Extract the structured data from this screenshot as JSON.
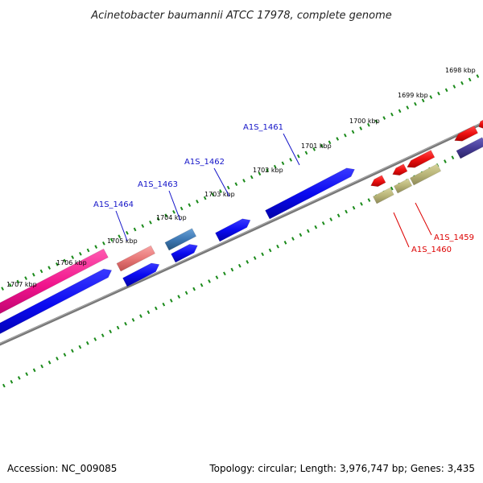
{
  "title": "Acinetobacter baumannii ATCC 17978, complete genome",
  "accession": "Accession: NC_009085",
  "summary": "Topology: circular; Length: 3,976,747 bp; Genes: 3,435",
  "ticks": [
    "1698 kbp",
    "1699 kbp",
    "1700 kbp",
    "1701 kbp",
    "1702 kbp",
    "1703 kbp",
    "1704 kbp",
    "1705 kbp",
    "1706 kbp",
    "1707 kbp"
  ],
  "gene_labels": [
    {
      "text": "A1S_1461",
      "strand": "forward"
    },
    {
      "text": "A1S_1462",
      "strand": "forward"
    },
    {
      "text": "A1S_1463",
      "strand": "forward"
    },
    {
      "text": "A1S_1464",
      "strand": "forward"
    },
    {
      "text": "A1S_1459",
      "strand": "reverse"
    },
    {
      "text": "A1S_1460",
      "strand": "reverse"
    }
  ],
  "colors": {
    "forward_cds": "#0a0af0",
    "reverse_cds": "#ee1111",
    "rna": "#b8b478",
    "pink": "#f0148c",
    "salmon": "#e87878",
    "steel": "#3e78b4",
    "navy": "#463c96",
    "backbone": "#808080",
    "ticks": "#1a8a1a",
    "forward_label": "#1414c8",
    "reverse_label": "#dd0000"
  }
}
